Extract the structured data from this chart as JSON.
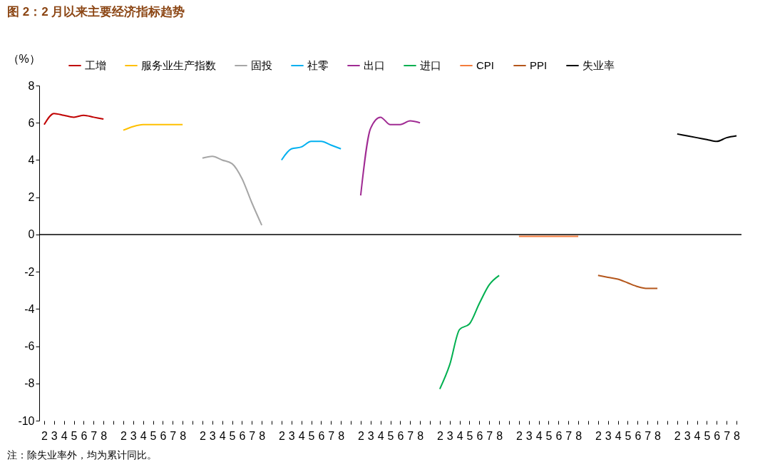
{
  "chart_data": {
    "type": "line",
    "title": "图 2：2 月以来主要经济指标趋势",
    "ylabel": "（%）",
    "categories": [
      "2",
      "3",
      "4",
      "5",
      "6",
      "7",
      "8",
      null,
      "2",
      "3",
      "4",
      "5",
      "6",
      "7",
      "8",
      null,
      "2",
      "3",
      "4",
      "5",
      "6",
      "7",
      "8",
      null,
      "2",
      "3",
      "4",
      "5",
      "6",
      "7",
      "8",
      null,
      "2",
      "3",
      "4",
      "5",
      "6",
      "7",
      "8",
      null,
      "2",
      "3",
      "4",
      "5",
      "6",
      "7",
      "8",
      null,
      "2",
      "3",
      "4",
      "5",
      "6",
      "7",
      "8",
      null,
      "2",
      "3",
      "4",
      "5",
      "6",
      "7",
      "8",
      null,
      "2",
      "3",
      "4",
      "5",
      "6",
      "7",
      "8"
    ],
    "series": [
      {
        "name": "工增",
        "color": "#c00000",
        "values": [
          5.9,
          6.5,
          6.4,
          6.3,
          6.4,
          6.3,
          6.2,
          null,
          null,
          null,
          null,
          null,
          null,
          null,
          null,
          null,
          null,
          null,
          null,
          null,
          null,
          null,
          null,
          null,
          null,
          null,
          null,
          null,
          null,
          null,
          null,
          null,
          null,
          null,
          null,
          null,
          null,
          null,
          null,
          null,
          null,
          null,
          null,
          null,
          null,
          null,
          null,
          null,
          null,
          null,
          null,
          null,
          null,
          null,
          null,
          null,
          null,
          null,
          null,
          null,
          null,
          null,
          null,
          null,
          null,
          null,
          null,
          null,
          null,
          null,
          null
        ]
      },
      {
        "name": "服务业生产指数",
        "color": "#ffc000",
        "values": [
          null,
          null,
          null,
          null,
          null,
          null,
          null,
          null,
          5.6,
          5.8,
          5.9,
          5.9,
          5.9,
          5.9,
          5.9,
          null,
          null,
          null,
          null,
          null,
          null,
          null,
          null,
          null,
          null,
          null,
          null,
          null,
          null,
          null,
          null,
          null,
          null,
          null,
          null,
          null,
          null,
          null,
          null,
          null,
          null,
          null,
          null,
          null,
          null,
          null,
          null,
          null,
          null,
          null,
          null,
          null,
          null,
          null,
          null,
          null,
          null,
          null,
          null,
          null,
          null,
          null,
          null,
          null,
          null,
          null,
          null,
          null,
          null,
          null,
          null
        ]
      },
      {
        "name": "固投",
        "color": "#a6a6a6",
        "values": [
          null,
          null,
          null,
          null,
          null,
          null,
          null,
          null,
          null,
          null,
          null,
          null,
          null,
          null,
          null,
          null,
          4.1,
          4.2,
          4.0,
          3.8,
          3.0,
          1.7,
          0.5,
          null,
          null,
          null,
          null,
          null,
          null,
          null,
          null,
          null,
          null,
          null,
          null,
          null,
          null,
          null,
          null,
          null,
          null,
          null,
          null,
          null,
          null,
          null,
          null,
          null,
          null,
          null,
          null,
          null,
          null,
          null,
          null,
          null,
          null,
          null,
          null,
          null,
          null,
          null,
          null,
          null,
          null,
          null,
          null,
          null,
          null,
          null,
          null
        ]
      },
      {
        "name": "社零",
        "color": "#00b0f0",
        "values": [
          null,
          null,
          null,
          null,
          null,
          null,
          null,
          null,
          null,
          null,
          null,
          null,
          null,
          null,
          null,
          null,
          null,
          null,
          null,
          null,
          null,
          null,
          null,
          null,
          4.0,
          4.6,
          4.7,
          5.0,
          5.0,
          4.8,
          4.6,
          null,
          null,
          null,
          null,
          null,
          null,
          null,
          null,
          null,
          null,
          null,
          null,
          null,
          null,
          null,
          null,
          null,
          null,
          null,
          null,
          null,
          null,
          null,
          null,
          null,
          null,
          null,
          null,
          null,
          null,
          null,
          null,
          null,
          null,
          null,
          null,
          null,
          null,
          null,
          null
        ]
      },
      {
        "name": "出口",
        "color": "#a02b93",
        "values": [
          null,
          null,
          null,
          null,
          null,
          null,
          null,
          null,
          null,
          null,
          null,
          null,
          null,
          null,
          null,
          null,
          null,
          null,
          null,
          null,
          null,
          null,
          null,
          null,
          null,
          null,
          null,
          null,
          null,
          null,
          null,
          null,
          2.1,
          5.7,
          6.3,
          5.9,
          5.9,
          6.1,
          6.0,
          null,
          null,
          null,
          null,
          null,
          null,
          null,
          null,
          null,
          null,
          null,
          null,
          null,
          null,
          null,
          null,
          null,
          null,
          null,
          null,
          null,
          null,
          null,
          null,
          null,
          null,
          null,
          null,
          null,
          null,
          null,
          null
        ]
      },
      {
        "name": "进口",
        "color": "#00b050",
        "values": [
          null,
          null,
          null,
          null,
          null,
          null,
          null,
          null,
          null,
          null,
          null,
          null,
          null,
          null,
          null,
          null,
          null,
          null,
          null,
          null,
          null,
          null,
          null,
          null,
          null,
          null,
          null,
          null,
          null,
          null,
          null,
          null,
          null,
          null,
          null,
          null,
          null,
          null,
          null,
          null,
          -8.3,
          -7.0,
          -5.1,
          -4.8,
          -3.7,
          -2.7,
          -2.2,
          null,
          null,
          null,
          null,
          null,
          null,
          null,
          null,
          null,
          null,
          null,
          null,
          null,
          null,
          null,
          null,
          null,
          null,
          null,
          null,
          null,
          null,
          null,
          null
        ]
      },
      {
        "name": "CPI",
        "color": "#f47c3c",
        "values": [
          null,
          null,
          null,
          null,
          null,
          null,
          null,
          null,
          null,
          null,
          null,
          null,
          null,
          null,
          null,
          null,
          null,
          null,
          null,
          null,
          null,
          null,
          null,
          null,
          null,
          null,
          null,
          null,
          null,
          null,
          null,
          null,
          null,
          null,
          null,
          null,
          null,
          null,
          null,
          null,
          null,
          null,
          null,
          null,
          null,
          null,
          null,
          null,
          -0.1,
          -0.1,
          -0.1,
          -0.1,
          -0.1,
          -0.1,
          -0.1,
          null,
          null,
          null,
          null,
          null,
          null,
          null,
          null,
          null,
          null,
          null,
          null,
          null,
          null,
          null,
          null
        ]
      },
      {
        "name": "PPI",
        "color": "#b4561b",
        "values": [
          null,
          null,
          null,
          null,
          null,
          null,
          null,
          null,
          null,
          null,
          null,
          null,
          null,
          null,
          null,
          null,
          null,
          null,
          null,
          null,
          null,
          null,
          null,
          null,
          null,
          null,
          null,
          null,
          null,
          null,
          null,
          null,
          null,
          null,
          null,
          null,
          null,
          null,
          null,
          null,
          null,
          null,
          null,
          null,
          null,
          null,
          null,
          null,
          null,
          null,
          null,
          null,
          null,
          null,
          null,
          null,
          -2.2,
          -2.3,
          -2.4,
          -2.6,
          -2.8,
          -2.9,
          -2.9,
          null,
          null,
          null,
          null,
          null,
          null,
          null,
          null
        ]
      },
      {
        "name": "失业率",
        "color": "#000000",
        "values": [
          null,
          null,
          null,
          null,
          null,
          null,
          null,
          null,
          null,
          null,
          null,
          null,
          null,
          null,
          null,
          null,
          null,
          null,
          null,
          null,
          null,
          null,
          null,
          null,
          null,
          null,
          null,
          null,
          null,
          null,
          null,
          null,
          null,
          null,
          null,
          null,
          null,
          null,
          null,
          null,
          null,
          null,
          null,
          null,
          null,
          null,
          null,
          null,
          null,
          null,
          null,
          null,
          null,
          null,
          null,
          null,
          null,
          null,
          null,
          null,
          null,
          null,
          null,
          null,
          5.4,
          5.3,
          5.2,
          5.1,
          5.0,
          5.2,
          5.3
        ]
      }
    ],
    "ylim": [
      -10,
      8
    ],
    "yticks": [
      -10,
      -8,
      -6,
      -4,
      -2,
      0,
      2,
      4,
      6,
      8
    ],
    "grid": false,
    "legend": "top",
    "ref_lines": [
      {
        "axis": "y",
        "value": 0,
        "color": "#000000"
      }
    ],
    "annotations": [
      "注：除失业率外，均为累计同比。"
    ]
  }
}
